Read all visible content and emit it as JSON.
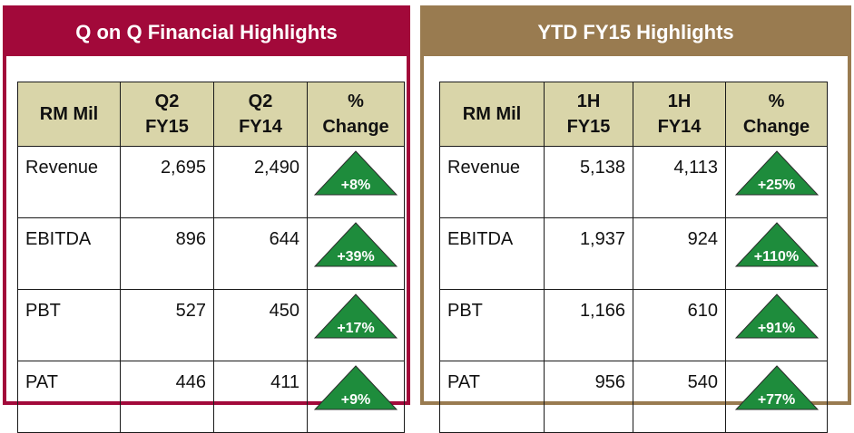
{
  "colors": {
    "left_accent": "#a2093a",
    "right_accent": "#997b50",
    "table_header_bg": "#d9d5a9",
    "triangle_fill": "#1e8c3c"
  },
  "left": {
    "title": "Q on Q Financial Highlights",
    "headers": {
      "label": "RM Mil",
      "c1_line1": "Q2",
      "c1_line2": "FY15",
      "c2_line1": "Q2",
      "c2_line2": "FY14",
      "c3_line1": "%",
      "c3_line2": "Change"
    },
    "rows": [
      {
        "label": "Revenue",
        "v1": "2,695",
        "v2": "2,490",
        "change": "+8%",
        "icon": "up-triangle-icon"
      },
      {
        "label": "EBITDA",
        "v1": "896",
        "v2": "644",
        "change": "+39%",
        "icon": "up-triangle-icon"
      },
      {
        "label": "PBT",
        "v1": "527",
        "v2": "450",
        "change": "+17%",
        "icon": "up-triangle-icon"
      },
      {
        "label": "PAT",
        "v1": "446",
        "v2": "411",
        "change": "+9%",
        "icon": "up-triangle-icon"
      }
    ]
  },
  "right": {
    "title": "YTD FY15 Highlights",
    "headers": {
      "label": "RM Mil",
      "c1_line1": "1H",
      "c1_line2": "FY15",
      "c2_line1": "1H",
      "c2_line2": "FY14",
      "c3_line1": "%",
      "c3_line2": "Change"
    },
    "rows": [
      {
        "label": "Revenue",
        "v1": "5,138",
        "v2": "4,113",
        "change": "+25%",
        "icon": "up-triangle-icon"
      },
      {
        "label": "EBITDA",
        "v1": "1,937",
        "v2": "924",
        "change": "+110%",
        "icon": "up-triangle-icon"
      },
      {
        "label": "PBT",
        "v1": "1,166",
        "v2": "610",
        "change": "+91%",
        "icon": "up-triangle-icon"
      },
      {
        "label": "PAT",
        "v1": "956",
        "v2": "540",
        "change": "+77%",
        "icon": "up-triangle-icon"
      }
    ]
  }
}
